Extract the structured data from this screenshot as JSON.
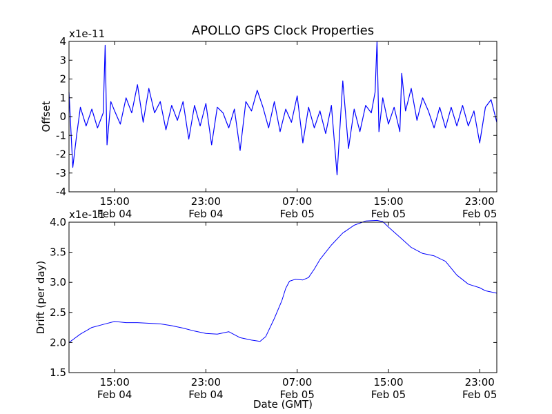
{
  "figure": {
    "title": "APOLLO GPS Clock Properties",
    "xlabel": "Date (GMT)"
  },
  "chart_data": [
    {
      "type": "line",
      "title": "APOLLO GPS Clock Properties",
      "xlabel": "",
      "ylabel": "Offset",
      "y_scale_label": "x1e-11",
      "xlim": [
        "2013-02-04 11:00",
        "2013-02-06 00:30"
      ],
      "ylim": [
        -4,
        4
      ],
      "yticks": [
        -4,
        -3,
        -2,
        -1,
        0,
        1,
        2,
        3,
        4
      ],
      "xticks": [
        {
          "x": "2013-02-04 15:00",
          "time": "15:00",
          "date": "Feb 04"
        },
        {
          "x": "2013-02-04 23:00",
          "time": "23:00",
          "date": "Feb 04"
        },
        {
          "x": "2013-02-05 07:00",
          "time": "07:00",
          "date": "Feb 05"
        },
        {
          "x": "2013-02-05 15:00",
          "time": "15:00",
          "date": "Feb 05"
        },
        {
          "x": "2013-02-05 23:00",
          "time": "23:00",
          "date": "Feb 05"
        }
      ],
      "color": "#0000ff",
      "grid": false,
      "series": [
        {
          "x": [
            "2013-02-04 11:00",
            "2013-02-04 11:20",
            "2013-02-04 11:40",
            "2013-02-04 12:00",
            "2013-02-04 12:30",
            "2013-02-04 13:00",
            "2013-02-04 13:30",
            "2013-02-04 14:00",
            "2013-02-04 14:10",
            "2013-02-04 14:20",
            "2013-02-04 14:40",
            "2013-02-04 15:00",
            "2013-02-04 15:30",
            "2013-02-04 16:00",
            "2013-02-04 16:30",
            "2013-02-04 17:00",
            "2013-02-04 17:30",
            "2013-02-04 18:00",
            "2013-02-04 18:30",
            "2013-02-04 19:00",
            "2013-02-04 19:30",
            "2013-02-04 20:00",
            "2013-02-04 20:30",
            "2013-02-04 21:00",
            "2013-02-04 21:30",
            "2013-02-04 22:00",
            "2013-02-04 22:30",
            "2013-02-04 23:00",
            "2013-02-04 23:30",
            "2013-02-05 00:00",
            "2013-02-05 00:30",
            "2013-02-05 01:00",
            "2013-02-05 01:30",
            "2013-02-05 02:00",
            "2013-02-05 02:30",
            "2013-02-05 03:00",
            "2013-02-05 03:30",
            "2013-02-05 04:00",
            "2013-02-05 04:30",
            "2013-02-05 05:00",
            "2013-02-05 05:30",
            "2013-02-05 06:00",
            "2013-02-05 06:30",
            "2013-02-05 07:00",
            "2013-02-05 07:30",
            "2013-02-05 08:00",
            "2013-02-05 08:30",
            "2013-02-05 09:00",
            "2013-02-05 09:30",
            "2013-02-05 10:00",
            "2013-02-05 10:30",
            "2013-02-05 11:00",
            "2013-02-05 11:30",
            "2013-02-05 12:00",
            "2013-02-05 12:30",
            "2013-02-05 13:00",
            "2013-02-05 13:30",
            "2013-02-05 13:50",
            "2013-02-05 14:00",
            "2013-02-05 14:10",
            "2013-02-05 14:30",
            "2013-02-05 15:00",
            "2013-02-05 15:30",
            "2013-02-05 16:00",
            "2013-02-05 16:10",
            "2013-02-05 16:30",
            "2013-02-05 17:00",
            "2013-02-05 17:30",
            "2013-02-05 18:00",
            "2013-02-05 18:30",
            "2013-02-05 19:00",
            "2013-02-05 19:30",
            "2013-02-05 20:00",
            "2013-02-05 20:30",
            "2013-02-05 21:00",
            "2013-02-05 21:30",
            "2013-02-05 22:00",
            "2013-02-05 22:30",
            "2013-02-05 23:00",
            "2013-02-05 23:30",
            "2013-02-06 00:00",
            "2013-02-06 00:30"
          ],
          "y": [
            1.3,
            -2.7,
            -1.0,
            0.5,
            -0.5,
            0.4,
            -0.6,
            0.2,
            3.8,
            -1.5,
            0.8,
            0.3,
            -0.4,
            1.0,
            0.2,
            1.7,
            -0.3,
            1.5,
            0.2,
            0.8,
            -0.7,
            0.6,
            -0.2,
            0.8,
            -1.2,
            0.6,
            -0.5,
            0.7,
            -1.5,
            0.5,
            0.2,
            -0.6,
            0.4,
            -1.8,
            0.8,
            0.3,
            1.4,
            0.5,
            -0.6,
            0.8,
            -0.8,
            0.4,
            -0.3,
            1.1,
            -1.4,
            0.5,
            -0.6,
            0.3,
            -0.9,
            0.6,
            -3.1,
            1.9,
            -1.7,
            0.4,
            -0.8,
            0.6,
            0.2,
            1.3,
            4.0,
            -0.8,
            1.0,
            -0.4,
            0.5,
            -0.8,
            2.3,
            0.3,
            1.5,
            -0.2,
            1.0,
            0.3,
            -0.6,
            0.5,
            -0.6,
            0.5,
            -0.5,
            0.6,
            -0.5,
            0.3,
            -1.4,
            0.5,
            0.9,
            -0.3
          ]
        }
      ]
    },
    {
      "type": "line",
      "title": "",
      "xlabel": "Date (GMT)",
      "ylabel": "Drift (per day)",
      "y_scale_label": "x1e-11",
      "xlim": [
        "2013-02-04 11:00",
        "2013-02-06 00:30"
      ],
      "ylim": [
        1.5,
        4.0
      ],
      "yticks": [
        1.5,
        2.0,
        2.5,
        3.0,
        3.5,
        4.0
      ],
      "ytick_labels": [
        "1.5",
        "2.0",
        "2.5",
        "3.0",
        "3.5",
        "4.0"
      ],
      "xticks": [
        {
          "x": "2013-02-04 15:00",
          "time": "15:00",
          "date": "Feb 04"
        },
        {
          "x": "2013-02-04 23:00",
          "time": "23:00",
          "date": "Feb 04"
        },
        {
          "x": "2013-02-05 07:00",
          "time": "07:00",
          "date": "Feb 05"
        },
        {
          "x": "2013-02-05 15:00",
          "time": "15:00",
          "date": "Feb 05"
        },
        {
          "x": "2013-02-05 23:00",
          "time": "23:00",
          "date": "Feb 05"
        }
      ],
      "color": "#0000ff",
      "grid": false,
      "series": [
        {
          "x": [
            "2013-02-04 11:00",
            "2013-02-04 12:00",
            "2013-02-04 13:00",
            "2013-02-04 14:00",
            "2013-02-04 15:00",
            "2013-02-04 16:00",
            "2013-02-04 17:00",
            "2013-02-04 18:00",
            "2013-02-04 19:00",
            "2013-02-04 20:00",
            "2013-02-04 21:00",
            "2013-02-04 22:00",
            "2013-02-04 23:00",
            "2013-02-05 00:00",
            "2013-02-05 01:00",
            "2013-02-05 02:00",
            "2013-02-05 03:00",
            "2013-02-05 03:45",
            "2013-02-05 04:15",
            "2013-02-05 05:00",
            "2013-02-05 05:40",
            "2013-02-05 06:00",
            "2013-02-05 06:20",
            "2013-02-05 06:50",
            "2013-02-05 07:30",
            "2013-02-05 08:00",
            "2013-02-05 08:30",
            "2013-02-05 09:00",
            "2013-02-05 10:00",
            "2013-02-05 11:00",
            "2013-02-05 12:00",
            "2013-02-05 13:00",
            "2013-02-05 14:00",
            "2013-02-05 14:30",
            "2013-02-05 15:00",
            "2013-02-05 16:00",
            "2013-02-05 17:00",
            "2013-02-05 18:00",
            "2013-02-05 19:00",
            "2013-02-05 20:00",
            "2013-02-05 21:00",
            "2013-02-05 22:00",
            "2013-02-05 23:00",
            "2013-02-05 23:30",
            "2013-02-06 00:30"
          ],
          "y": [
            2.0,
            2.14,
            2.25,
            2.3,
            2.35,
            2.33,
            2.33,
            2.32,
            2.31,
            2.28,
            2.24,
            2.19,
            2.15,
            2.14,
            2.18,
            2.08,
            2.04,
            2.02,
            2.1,
            2.4,
            2.7,
            2.9,
            3.02,
            3.05,
            3.04,
            3.08,
            3.22,
            3.38,
            3.62,
            3.82,
            3.95,
            4.02,
            4.03,
            4.01,
            3.92,
            3.75,
            3.58,
            3.48,
            3.44,
            3.35,
            3.12,
            2.97,
            2.91,
            2.86,
            2.82
          ]
        }
      ]
    }
  ]
}
